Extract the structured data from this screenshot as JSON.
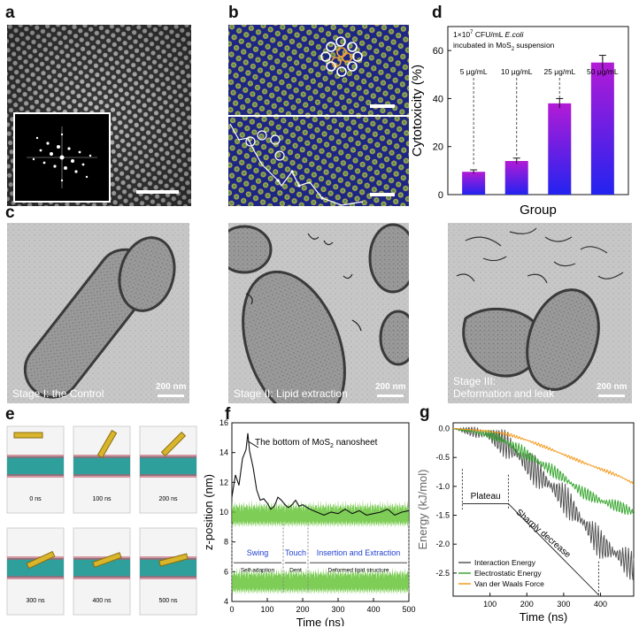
{
  "panel_labels": {
    "a": "a",
    "b": "b",
    "c": "c",
    "d": "d",
    "e": "e",
    "f": "f",
    "g": "g"
  },
  "panel_c": {
    "stage1": "Stage I: the Control",
    "stage2": "Stage II: Lipid extraction",
    "stage3_line1": "Stage III:",
    "stage3_line2": "Deformation and leak",
    "scale1": "200 nm",
    "scale2": "200 nm",
    "scale3": "200 nm"
  },
  "panel_e": {
    "times": [
      "0 ns",
      "100 ns",
      "200 ns",
      "300 ns",
      "400 ns",
      "500 ns"
    ]
  },
  "chart_data": [
    {
      "id": "d",
      "type": "bar",
      "annotation_line1_pre": "1×10",
      "annotation_line1_sup": "7",
      "annotation_line1_mid": " CFU/mL ",
      "annotation_line1_it": "E.coli",
      "annotation_line2_pre": "incubated in MoS",
      "annotation_line2_sub": "2",
      "annotation_line2_post": " suspension",
      "categories": [
        "5 μg/mL",
        "10 μg/mL",
        "25 μg/mL",
        "50 μg/mL"
      ],
      "values": [
        9.5,
        14,
        38,
        55
      ],
      "errors": [
        0.8,
        1.2,
        2.0,
        3.0
      ],
      "xlabel": "Group",
      "ylabel": "Cytotoxicity (%)",
      "ylim": [
        0,
        70
      ],
      "yticks": [
        "0",
        "20",
        "40",
        "60"
      ],
      "colors": {
        "top": "#b31bd6",
        "bottom": "#2323f0"
      }
    },
    {
      "id": "f",
      "type": "line",
      "annotation_pre": "The bottom of MoS",
      "annotation_sub": "2",
      "annotation_post": " nanosheet",
      "xlabel": "Time (ns)",
      "ylabel": "z-position (nm)",
      "xlim": [
        0,
        500
      ],
      "ylim": [
        4,
        16
      ],
      "xticks": [
        "0",
        "100",
        "200",
        "300",
        "400",
        "500"
      ],
      "yticks": [
        "4",
        "6",
        "8",
        "10",
        "12",
        "14",
        "16"
      ],
      "phases": [
        {
          "name": "Swing",
          "sub": "Self-adaption"
        },
        {
          "name": "Touch",
          "sub": "Dent"
        },
        {
          "name": "Insertion and Extraction",
          "sub": "Deformed lipid structure"
        }
      ],
      "phase_bounds": [
        0,
        145,
        215,
        500
      ],
      "series": [
        {
          "name": "",
          "color": "#111111",
          "x": [
            0,
            10,
            20,
            30,
            40,
            45,
            50,
            60,
            70,
            80,
            90,
            100,
            110,
            120,
            130,
            140,
            150,
            160,
            170,
            180,
            190,
            200,
            220,
            240,
            260,
            280,
            300,
            320,
            340,
            360,
            380,
            400,
            420,
            440,
            460,
            480,
            500
          ],
          "y": [
            11.0,
            12.5,
            11.8,
            13.6,
            14.2,
            15.3,
            14.1,
            13.0,
            11.5,
            10.8,
            10.9,
            10.6,
            10.2,
            10.4,
            11.0,
            10.8,
            10.5,
            10.3,
            10.5,
            10.8,
            10.4,
            10.5,
            10.2,
            10.0,
            9.8,
            10.0,
            9.9,
            10.2,
            9.9,
            10.1,
            9.8,
            9.9,
            10.0,
            10.2,
            9.8,
            10.0,
            10.1
          ]
        },
        {
          "name": "",
          "color": "#5cc02c",
          "band_center": 9.8,
          "band_halfwidth": 0.6
        },
        {
          "name": "",
          "color": "#5cc02c",
          "band_center": 5.3,
          "band_halfwidth": 0.6
        }
      ]
    },
    {
      "id": "g",
      "type": "line",
      "xlabel": "Time (ns)",
      "ylabel": "Energy (kJ/mol)",
      "xlim": [
        0,
        490
      ],
      "ylim": [
        -2.9,
        0.1
      ],
      "xticks": [
        "100",
        "200",
        "300",
        "400"
      ],
      "yticks": [
        "0.0",
        "-0.5",
        "-1.0",
        "-1.5",
        "-2.0",
        "-2.5"
      ],
      "annotations": {
        "plateau": "Plateau",
        "sharp": "Sharply decrease"
      },
      "series": [
        {
          "name": "Interaction Energy",
          "color": "#555555",
          "x": [
            0,
            50,
            100,
            150,
            200,
            250,
            300,
            350,
            400,
            450,
            490
          ],
          "y": [
            0,
            -0.05,
            -0.12,
            -0.3,
            -0.6,
            -0.9,
            -1.2,
            -1.6,
            -2.0,
            -2.2,
            -2.4
          ]
        },
        {
          "name": "Electrostatic Energy",
          "color": "#3aa832",
          "x": [
            0,
            50,
            100,
            150,
            200,
            250,
            300,
            350,
            400,
            450,
            490
          ],
          "y": [
            0,
            -0.05,
            -0.1,
            -0.25,
            -0.45,
            -0.65,
            -0.85,
            -1.1,
            -1.25,
            -1.35,
            -1.45
          ]
        },
        {
          "name": "Van der Waals Force",
          "color": "#f39a1c",
          "x": [
            0,
            50,
            100,
            150,
            200,
            250,
            300,
            350,
            400,
            450,
            490
          ],
          "y": [
            0,
            -0.02,
            -0.05,
            -0.1,
            -0.2,
            -0.32,
            -0.45,
            -0.58,
            -0.7,
            -0.82,
            -0.95
          ]
        }
      ]
    }
  ]
}
